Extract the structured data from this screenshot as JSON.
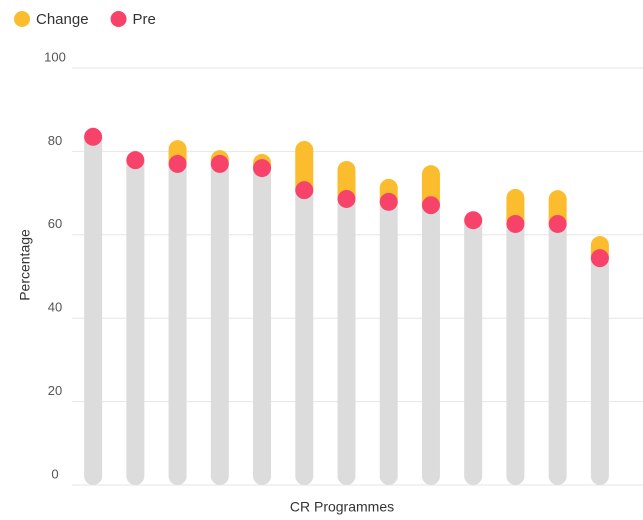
{
  "chart_data": {
    "type": "dot-stack",
    "x_label": "CR Programmes",
    "y_label": "Percentage",
    "categories": [
      null,
      null,
      null,
      null,
      null,
      null,
      null,
      null,
      null,
      null,
      null,
      null,
      null
    ],
    "series": [
      {
        "name": "Change",
        "color": "#fbbd2e",
        "values": [
          0,
          1.6,
          5.7,
          3.3,
          3.4,
          11.8,
          9.1,
          5.5,
          9.6,
          0,
          8.4,
          8.1,
          5.3
        ]
      },
      {
        "name": "Pre",
        "color": "#f74369",
        "values": [
          83.5,
          77.9,
          77,
          77,
          76,
          70.7,
          68.6,
          67.9,
          67.1,
          63.5,
          62.6,
          62.6,
          54.4
        ]
      }
    ],
    "track_color": "#dcdcdc",
    "ylim": [
      0,
      100
    ],
    "yticks": [
      0,
      20,
      40,
      60,
      80,
      100
    ],
    "grid": true,
    "legend": "top-left"
  }
}
